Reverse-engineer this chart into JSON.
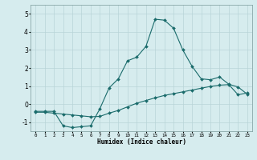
{
  "xlabel": "Humidex (Indice chaleur)",
  "ylabel": "",
  "background_color": "#d6ecee",
  "grid_color": "#b8d4d8",
  "line_color": "#1a6b6b",
  "x_ticks": [
    0,
    1,
    2,
    3,
    4,
    5,
    6,
    7,
    8,
    9,
    10,
    11,
    12,
    13,
    14,
    15,
    16,
    17,
    18,
    19,
    20,
    21,
    22,
    23
  ],
  "ylim": [
    -1.5,
    5.5
  ],
  "xlim": [
    -0.5,
    23.5
  ],
  "curve1_x": [
    0,
    1,
    2,
    3,
    4,
    5,
    6,
    7,
    8,
    9,
    10,
    11,
    12,
    13,
    14,
    15,
    16,
    17,
    18,
    19,
    20,
    21,
    22,
    23
  ],
  "curve1_y": [
    -0.4,
    -0.4,
    -0.4,
    -1.2,
    -1.3,
    -1.25,
    -1.2,
    -0.25,
    0.9,
    1.4,
    2.4,
    2.6,
    3.2,
    4.7,
    4.65,
    4.2,
    3.0,
    2.1,
    1.4,
    1.35,
    1.5,
    1.1,
    0.95,
    0.55
  ],
  "curve2_x": [
    0,
    1,
    2,
    3,
    4,
    5,
    6,
    7,
    8,
    9,
    10,
    11,
    12,
    13,
    14,
    15,
    16,
    17,
    18,
    19,
    20,
    21,
    22,
    23
  ],
  "curve2_y": [
    -0.45,
    -0.45,
    -0.5,
    -0.55,
    -0.6,
    -0.65,
    -0.7,
    -0.68,
    -0.5,
    -0.35,
    -0.15,
    0.05,
    0.2,
    0.35,
    0.48,
    0.58,
    0.68,
    0.78,
    0.88,
    0.98,
    1.05,
    1.08,
    0.52,
    0.62
  ]
}
